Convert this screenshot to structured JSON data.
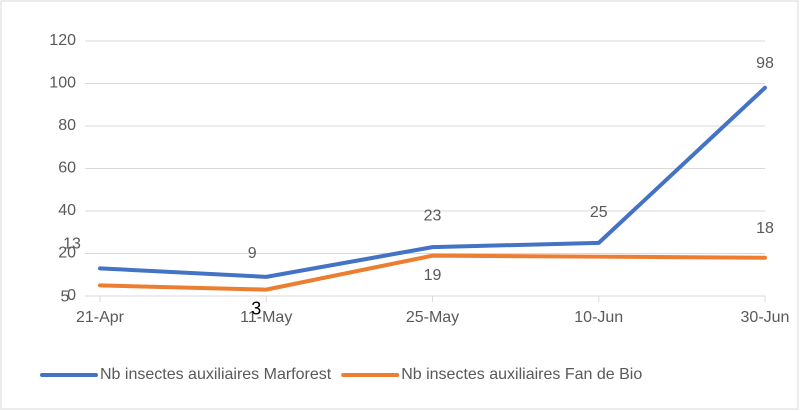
{
  "chart_data": {
    "type": "line",
    "categories": [
      "21-Apr",
      "11-May",
      "25-May",
      "10-Jun",
      "30-Jun"
    ],
    "series": [
      {
        "name": "Nb insectes auxiliaires Marforest",
        "color": "#4472c4",
        "values": [
          13,
          9,
          23,
          25,
          98
        ],
        "value_labels": [
          "13",
          "9",
          "23",
          "25",
          "98"
        ]
      },
      {
        "name": "Nb insectes auxiliaires Fan de Bio",
        "color": "#ed7d31",
        "values": [
          5,
          3,
          19,
          18.5,
          18
        ],
        "value_labels": [
          "5",
          "3",
          "19",
          null,
          "18"
        ]
      }
    ],
    "ylim": [
      0,
      120
    ],
    "yticks": [
      0,
      20,
      40,
      60,
      80,
      100,
      120
    ],
    "grid": true,
    "legend": "bottom"
  }
}
